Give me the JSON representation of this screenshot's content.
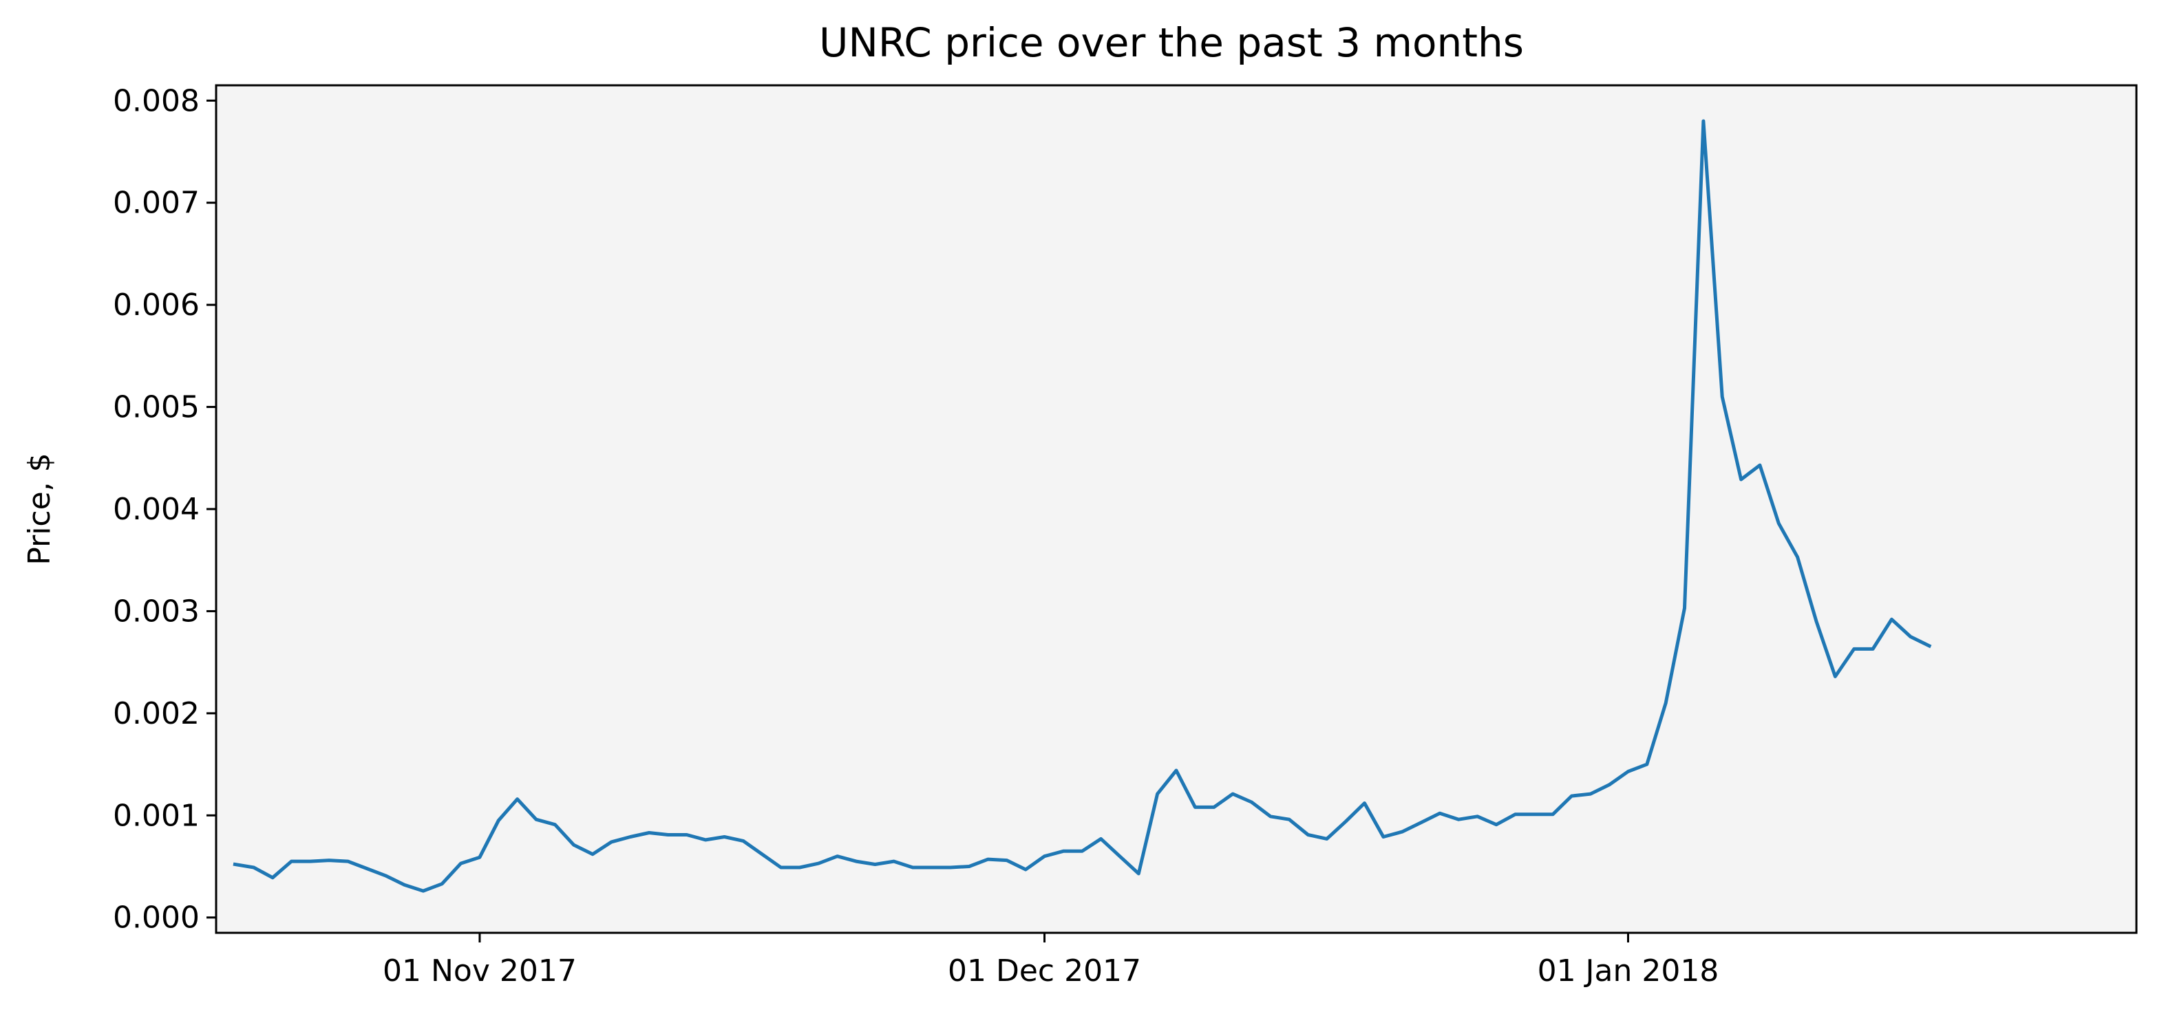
{
  "chart_data": {
    "type": "line",
    "title": "UNRC price over the past 3 months",
    "xlabel": "",
    "ylabel": "Price, $",
    "x_start": "2017-10-19",
    "x_interval_days": 1,
    "xlim": [
      "2017-10-18",
      "2018-01-28"
    ],
    "ylim": [
      -0.00015,
      0.00815
    ],
    "grid": false,
    "background_color": "#f4f4f4",
    "x_ticks": [
      {
        "date": "2017-11-01",
        "label": "01 Nov 2017"
      },
      {
        "date": "2017-12-01",
        "label": "01 Dec 2017"
      },
      {
        "date": "2018-01-01",
        "label": "01 Jan 2018"
      }
    ],
    "y_ticks": [
      {
        "value": 0.0,
        "label": "0.000"
      },
      {
        "value": 0.001,
        "label": "0.001"
      },
      {
        "value": 0.002,
        "label": "0.002"
      },
      {
        "value": 0.003,
        "label": "0.003"
      },
      {
        "value": 0.004,
        "label": "0.004"
      },
      {
        "value": 0.005,
        "label": "0.005"
      },
      {
        "value": 0.006,
        "label": "0.006"
      },
      {
        "value": 0.007,
        "label": "0.007"
      },
      {
        "value": 0.008,
        "label": "0.008"
      }
    ],
    "series": [
      {
        "color": "#1f77b4",
        "values": [
          0.00052,
          0.00049,
          0.00039,
          0.00055,
          0.00055,
          0.00056,
          0.00055,
          0.00048,
          0.00041,
          0.00032,
          0.00026,
          0.00033,
          0.00053,
          0.00059,
          0.00095,
          0.00116,
          0.00096,
          0.00091,
          0.00071,
          0.00062,
          0.00074,
          0.00079,
          0.00083,
          0.00081,
          0.00081,
          0.00076,
          0.00079,
          0.00075,
          0.00062,
          0.00049,
          0.00049,
          0.00053,
          0.0006,
          0.00055,
          0.00052,
          0.00055,
          0.00049,
          0.00049,
          0.00049,
          0.0005,
          0.00057,
          0.00056,
          0.00047,
          0.0006,
          0.00065,
          0.00065,
          0.00077,
          0.0006,
          0.00043,
          0.00121,
          0.00144,
          0.00108,
          0.00108,
          0.00121,
          0.00113,
          0.00099,
          0.00096,
          0.00081,
          0.00077,
          0.00094,
          0.00112,
          0.00079,
          0.00084,
          0.00093,
          0.00102,
          0.00096,
          0.00099,
          0.00091,
          0.00101,
          0.00101,
          0.00101,
          0.00119,
          0.00121,
          0.0013,
          0.00143,
          0.0015,
          0.0021,
          0.00303,
          0.0078,
          0.0051,
          0.00429,
          0.00443,
          0.00386,
          0.00353,
          0.0029,
          0.00236,
          0.00263,
          0.00263,
          0.00292,
          0.00275,
          0.00266
        ]
      }
    ]
  }
}
